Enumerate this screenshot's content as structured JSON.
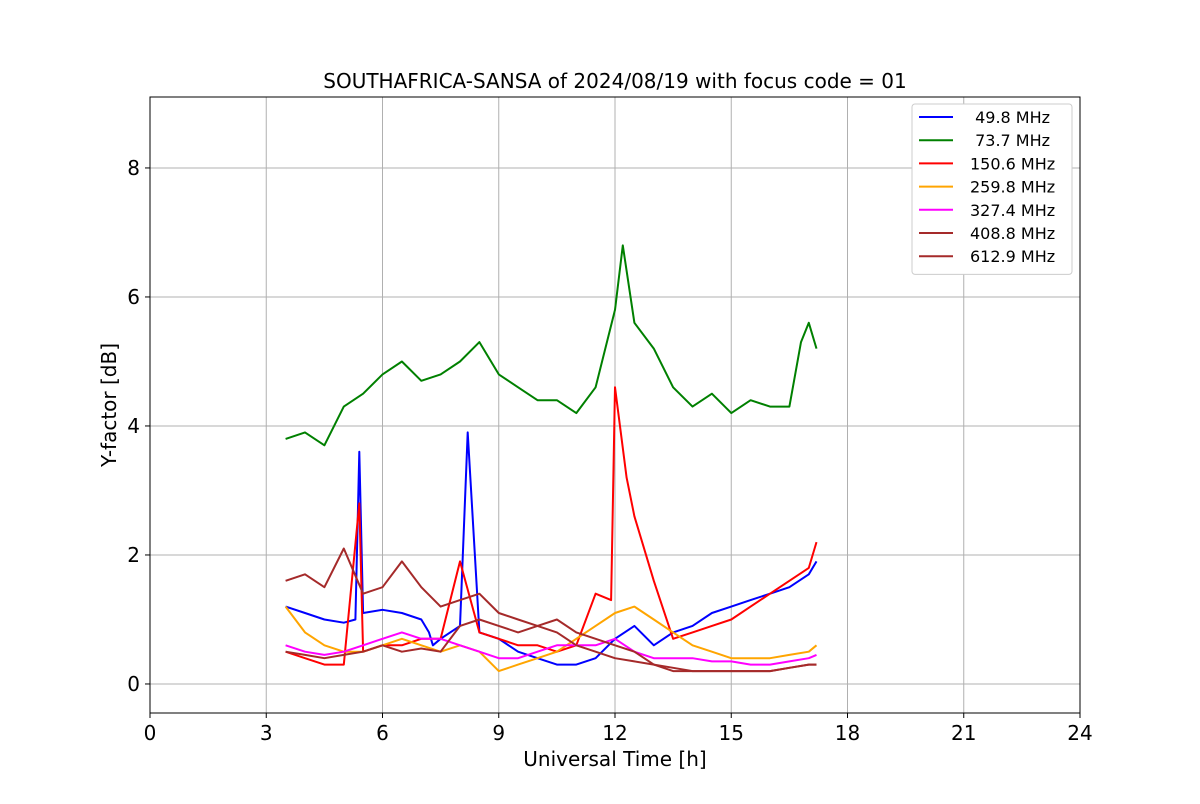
{
  "chart_data": {
    "type": "line",
    "title": "SOUTHAFRICA-SANSA of 2024/08/19 with focus code = 01",
    "xlabel": "Universal Time [h]",
    "ylabel": "Y-factor [dB]",
    "xlim": [
      0,
      24
    ],
    "ylim": [
      -0.45,
      9.1
    ],
    "xticks": [
      0,
      3,
      6,
      9,
      12,
      15,
      18,
      21,
      24
    ],
    "yticks": [
      0,
      2,
      4,
      6,
      8
    ],
    "xtick_labels": [
      "0",
      "3",
      "6",
      "9",
      "12",
      "15",
      "18",
      "21",
      "24"
    ],
    "ytick_labels": [
      "0",
      "2",
      "4",
      "6",
      "8"
    ],
    "grid": true,
    "legend_position": "top-right",
    "series": [
      {
        "name": " 49.8 MHz",
        "color": "#0000ff",
        "x": [
          3.5,
          4.0,
          4.5,
          5.0,
          5.3,
          5.4,
          5.5,
          6.0,
          6.5,
          7.0,
          7.2,
          7.3,
          7.5,
          8.0,
          8.2,
          8.5,
          9.0,
          9.5,
          10.0,
          10.5,
          11.0,
          11.5,
          12.0,
          12.5,
          13.0,
          13.5,
          14.0,
          14.5,
          15.0,
          15.5,
          16.0,
          16.5,
          17.0,
          17.2
        ],
        "y": [
          1.2,
          1.1,
          1.0,
          0.95,
          1.0,
          3.6,
          1.1,
          1.15,
          1.1,
          1.0,
          0.8,
          0.6,
          0.7,
          0.9,
          3.9,
          0.8,
          0.7,
          0.5,
          0.4,
          0.3,
          0.3,
          0.4,
          0.7,
          0.9,
          0.6,
          0.8,
          0.9,
          1.1,
          1.2,
          1.3,
          1.4,
          1.5,
          1.7,
          1.9
        ]
      },
      {
        "name": " 73.7 MHz",
        "color": "#008000",
        "x": [
          3.5,
          4.0,
          4.5,
          5.0,
          5.5,
          6.0,
          6.5,
          7.0,
          7.5,
          8.0,
          8.5,
          9.0,
          9.5,
          10.0,
          10.5,
          11.0,
          11.5,
          12.0,
          12.2,
          12.5,
          13.0,
          13.5,
          14.0,
          14.5,
          15.0,
          15.5,
          16.0,
          16.5,
          16.8,
          17.0,
          17.2
        ],
        "y": [
          3.8,
          3.9,
          3.7,
          4.3,
          4.5,
          4.8,
          5.0,
          4.7,
          4.8,
          5.0,
          5.3,
          4.8,
          4.6,
          4.4,
          4.4,
          4.2,
          4.6,
          5.8,
          6.8,
          5.6,
          5.2,
          4.6,
          4.3,
          4.5,
          4.2,
          4.4,
          4.3,
          4.3,
          5.3,
          5.6,
          5.2
        ]
      },
      {
        "name": "150.6 MHz",
        "color": "#ff0000",
        "x": [
          3.5,
          4.0,
          4.5,
          5.0,
          5.4,
          5.5,
          6.0,
          6.5,
          7.0,
          7.5,
          8.0,
          8.5,
          9.0,
          9.5,
          10.0,
          10.5,
          11.0,
          11.5,
          11.9,
          12.0,
          12.3,
          12.5,
          13.0,
          13.5,
          14.0,
          14.5,
          15.0,
          15.5,
          16.0,
          16.5,
          17.0,
          17.2
        ],
        "y": [
          0.5,
          0.4,
          0.3,
          0.3,
          2.8,
          0.5,
          0.6,
          0.6,
          0.7,
          0.7,
          1.9,
          0.8,
          0.7,
          0.6,
          0.6,
          0.5,
          0.6,
          1.4,
          1.3,
          4.6,
          3.2,
          2.6,
          1.6,
          0.7,
          0.8,
          0.9,
          1.0,
          1.2,
          1.4,
          1.6,
          1.8,
          2.2
        ]
      },
      {
        "name": "259.8 MHz",
        "color": "#ffa500",
        "x": [
          3.5,
          4.0,
          4.5,
          5.0,
          5.5,
          6.0,
          6.5,
          7.0,
          7.5,
          8.0,
          8.5,
          9.0,
          9.5,
          10.0,
          10.5,
          11.0,
          11.5,
          12.0,
          12.5,
          13.0,
          13.5,
          14.0,
          14.5,
          15.0,
          15.5,
          16.0,
          16.5,
          17.0,
          17.2
        ],
        "y": [
          1.2,
          0.8,
          0.6,
          0.5,
          0.5,
          0.6,
          0.7,
          0.6,
          0.5,
          0.6,
          0.5,
          0.2,
          0.3,
          0.4,
          0.5,
          0.7,
          0.9,
          1.1,
          1.2,
          1.0,
          0.8,
          0.6,
          0.5,
          0.4,
          0.4,
          0.4,
          0.45,
          0.5,
          0.6
        ]
      },
      {
        "name": "327.4 MHz",
        "color": "#ff00ff",
        "x": [
          3.5,
          4.0,
          4.5,
          5.0,
          5.5,
          6.0,
          6.5,
          7.0,
          7.5,
          8.0,
          8.5,
          9.0,
          9.5,
          10.0,
          10.5,
          11.0,
          11.5,
          12.0,
          12.5,
          13.0,
          13.5,
          14.0,
          14.5,
          15.0,
          15.5,
          16.0,
          16.5,
          17.0,
          17.2
        ],
        "y": [
          0.6,
          0.5,
          0.45,
          0.5,
          0.6,
          0.7,
          0.8,
          0.7,
          0.7,
          0.6,
          0.5,
          0.4,
          0.4,
          0.5,
          0.6,
          0.6,
          0.6,
          0.7,
          0.5,
          0.4,
          0.4,
          0.4,
          0.35,
          0.35,
          0.3,
          0.3,
          0.35,
          0.4,
          0.45
        ]
      },
      {
        "name": "408.8 MHz",
        "color": "#a52a2a",
        "x": [
          3.5,
          4.0,
          4.5,
          5.0,
          5.5,
          6.0,
          6.5,
          7.0,
          7.5,
          8.0,
          8.5,
          9.0,
          9.5,
          10.0,
          10.5,
          11.0,
          11.5,
          12.0,
          12.5,
          13.0,
          13.5,
          14.0,
          14.5,
          15.0,
          15.5,
          16.0,
          16.5,
          17.0,
          17.2
        ],
        "y": [
          1.6,
          1.7,
          1.5,
          2.1,
          1.4,
          1.5,
          1.9,
          1.5,
          1.2,
          1.3,
          1.4,
          1.1,
          1.0,
          0.9,
          1.0,
          0.8,
          0.7,
          0.6,
          0.5,
          0.3,
          0.2,
          0.2,
          0.2,
          0.2,
          0.2,
          0.2,
          0.25,
          0.3,
          0.3
        ]
      },
      {
        "name": "612.9 MHz",
        "color": "#a52a2a",
        "x": [
          3.5,
          4.0,
          4.5,
          5.0,
          5.5,
          6.0,
          6.5,
          7.0,
          7.5,
          8.0,
          8.5,
          9.0,
          9.5,
          10.0,
          10.5,
          11.0,
          11.5,
          12.0,
          12.5,
          13.0,
          13.5,
          14.0,
          14.5,
          15.0,
          15.5,
          16.0,
          16.5,
          17.0,
          17.2
        ],
        "y": [
          0.5,
          0.45,
          0.4,
          0.45,
          0.5,
          0.6,
          0.5,
          0.55,
          0.5,
          0.9,
          1.0,
          0.9,
          0.8,
          0.9,
          0.8,
          0.6,
          0.5,
          0.4,
          0.35,
          0.3,
          0.25,
          0.2,
          0.2,
          0.2,
          0.2,
          0.2,
          0.25,
          0.3,
          0.3
        ]
      }
    ]
  }
}
